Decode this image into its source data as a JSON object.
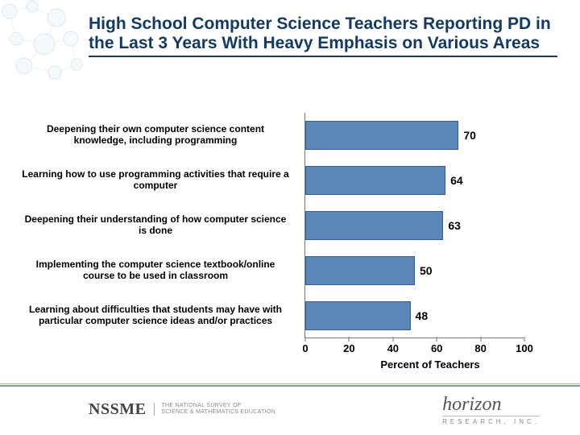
{
  "title": "High School Computer Science Teachers Reporting PD in the Last 3 Years With Heavy Emphasis on Various Areas",
  "title_fontsize": 21,
  "title_color": "#113b66",
  "chart": {
    "type": "bar-horizontal",
    "xlim": [
      0,
      100
    ],
    "xtick_step": 20,
    "xticks": [
      0,
      20,
      40,
      60,
      80,
      100
    ],
    "xlabel": "Percent of Teachers",
    "label_fontsize": 13,
    "tick_fontsize": 13,
    "category_fontsize": 12,
    "value_fontsize": 14,
    "bar_color": "#5a87b8",
    "bar_border_color": "#2f5d8e",
    "axis_color": "#777777",
    "background_color": "#ffffff",
    "categories": [
      "Deepening their own computer science content knowledge, including programming",
      "Learning how to use programming activities that require a computer",
      "Deepening their understanding of how computer science is done",
      "Implementing the computer science textbook/online course to be used in classroom",
      "Learning about difficulties that students may have with particular computer science ideas and/or practices"
    ],
    "values": [
      70,
      64,
      63,
      50,
      48
    ]
  },
  "footer": {
    "left_mark": "NSSME",
    "left_sub1": "THE NATIONAL SURVEY OF",
    "left_sub2": "SCIENCE & MATHEMATICS EDUCATION",
    "right_mark": "horizon",
    "right_sub": "RESEARCH, INC."
  },
  "deco": {
    "node_fill": "#e6eef5",
    "node_stroke": "#9fb9d4",
    "edge_stroke": "#c6d6e6"
  }
}
